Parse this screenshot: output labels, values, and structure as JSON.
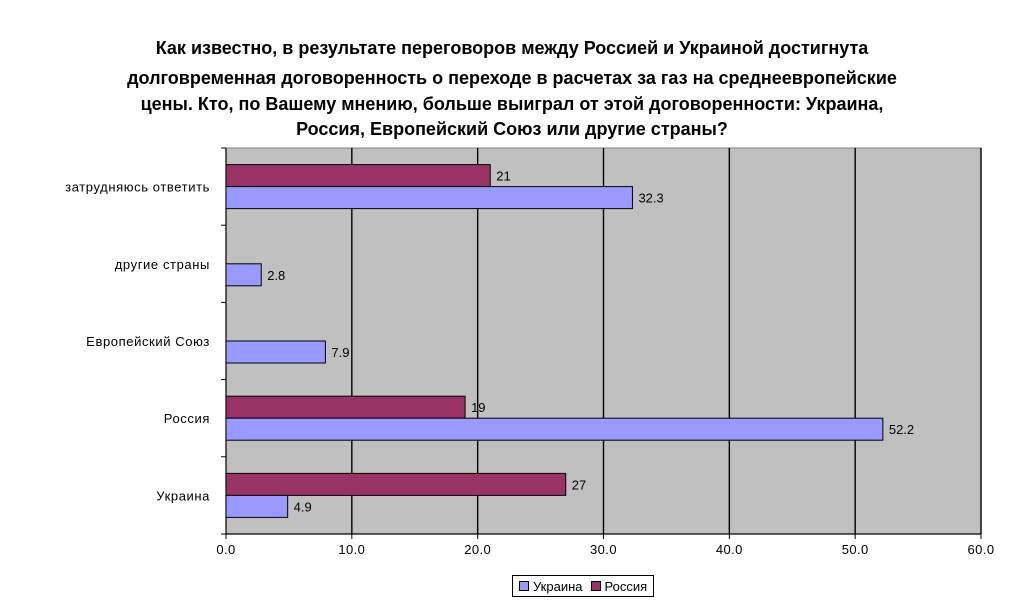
{
  "chart_data": {
    "type": "bar",
    "orientation": "horizontal",
    "title_lines": [
      "Как известно, в результате переговоров между Россией и Украиной  достигнута",
      "долговременная договоренность о переходе в расчетах за газ на среднеевропейские",
      "цены. Кто, по Вашему мнению, больше выиграл от этой договоренности: Украина,",
      "Россия, Европейский Союз или другие страны?"
    ],
    "categories": [
      "затрудняюсь ответить",
      "другие страны",
      "Европейский Союз",
      "Россия",
      "Украина"
    ],
    "series": [
      {
        "name": "Украина",
        "color": "#9999ff",
        "values": [
          32.3,
          2.8,
          7.9,
          52.2,
          4.9
        ],
        "labels": [
          "32.3",
          "2.8",
          "7.9",
          "52.2",
          "4.9"
        ]
      },
      {
        "name": "Россия",
        "color": "#993366",
        "values": [
          21,
          null,
          null,
          19,
          27
        ],
        "labels": [
          "21",
          "",
          "",
          "19",
          "27"
        ]
      }
    ],
    "xlim": [
      0,
      60
    ],
    "xticks": [
      "0.0",
      "10.0",
      "20.0",
      "30.0",
      "40.0",
      "50.0",
      "60.0"
    ],
    "xtick_values": [
      0,
      10,
      20,
      30,
      40,
      50,
      60
    ],
    "plot_background": "#c0c0c0",
    "gridlines": true,
    "legend_position": "bottom"
  }
}
